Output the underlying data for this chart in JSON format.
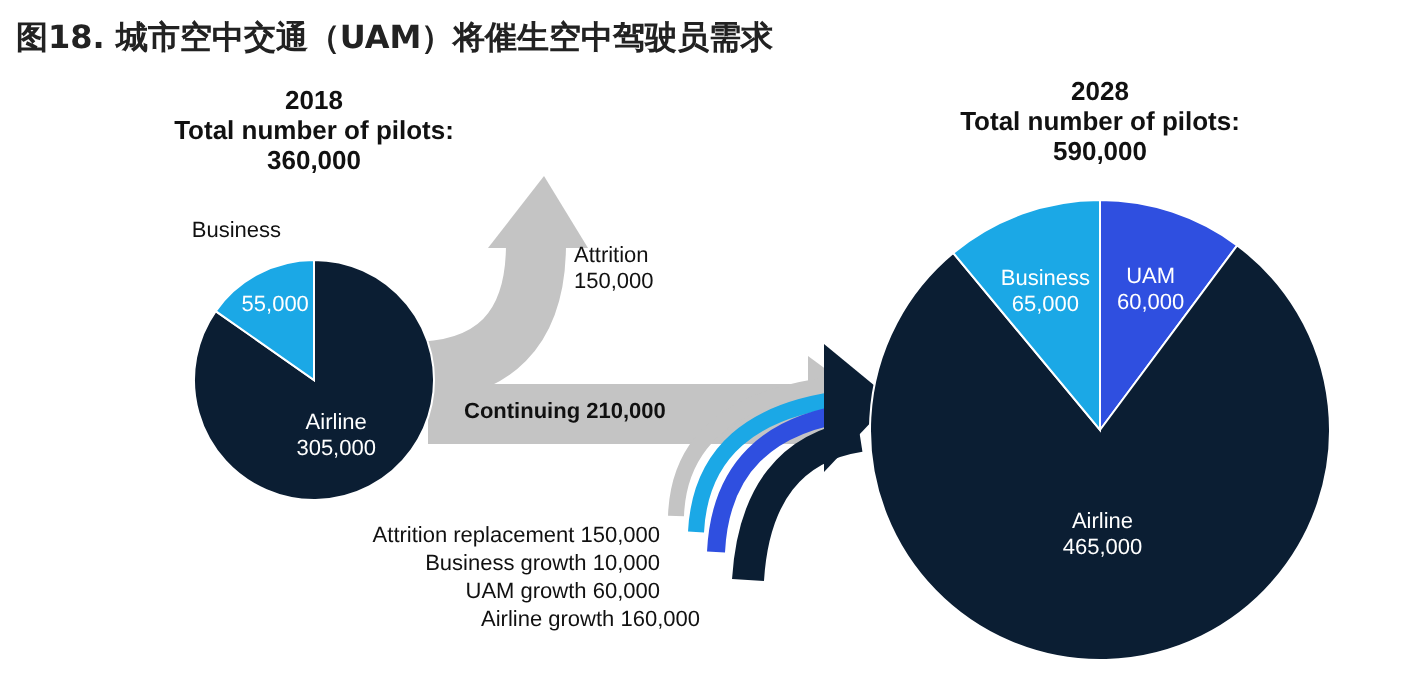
{
  "chart_data": [
    {
      "type": "other",
      "title": "图18. 城市空中交通（UAM）将催生空中驾驶员需求",
      "annotations": [
        "Attrition\n150,000",
        "Continuing 210,000",
        "Attrition replacement 150,000",
        "Business growth 10,000",
        "UAM growth 60,000",
        "Airline growth 160,000"
      ]
    },
    {
      "type": "pie",
      "title": "2018",
      "subtitle": [
        "Total number of pilots:",
        "360,000"
      ],
      "categories": [
        "Airline",
        "Business"
      ],
      "values": [
        305000,
        55000
      ],
      "colors": [
        "#0b1e33",
        "#1ba8e6"
      ],
      "value_labels": [
        "305,000",
        "55,000"
      ]
    },
    {
      "type": "pie",
      "title": "2028",
      "subtitle": [
        "Total number of pilots:",
        "590,000"
      ],
      "categories": [
        "UAM",
        "Airline",
        "Business"
      ],
      "values": [
        60000,
        465000,
        65000
      ],
      "colors": [
        "#2f4fe0",
        "#0b1e33",
        "#1ba8e6"
      ],
      "value_labels": [
        "60,000",
        "465,000",
        "65,000"
      ]
    }
  ]
}
